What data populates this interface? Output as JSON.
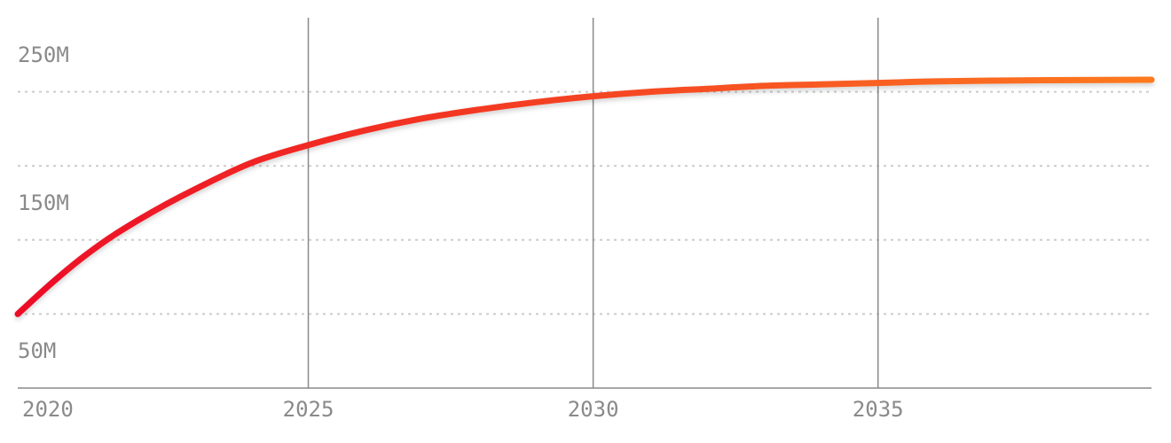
{
  "chart_data": {
    "type": "line",
    "title": "",
    "xlabel": "",
    "ylabel": "",
    "x_ticks": [
      2020,
      2025,
      2030,
      2035
    ],
    "x_tick_labels": [
      "2020",
      "2025",
      "2030",
      "2035"
    ],
    "y_ticks": [
      50,
      150,
      250
    ],
    "y_tick_labels": [
      "50M",
      "150M",
      "250M"
    ],
    "y_gridlines": [
      75,
      125,
      175,
      225
    ],
    "y_unit": "millions",
    "xlim": [
      2019.9,
      2039.8
    ],
    "ylim": [
      25,
      275
    ],
    "grid": {
      "x": "solid",
      "y": "dotted"
    },
    "legend": "none",
    "colors": {
      "line_start": "#ec0d26",
      "line_end": "#fd7a1f",
      "grid_x": "#8a8a8a",
      "grid_y": "#cccccc",
      "axis": "#8a8a8a",
      "tick_text": "#8a8a8a"
    },
    "series": [
      {
        "x": [
          2019.9,
          2020.5,
          2021,
          2021.5,
          2022,
          2022.5,
          2023,
          2024,
          2025,
          2026,
          2027,
          2028,
          2029,
          2030,
          2031,
          2032,
          2033,
          2034,
          2035,
          2036,
          2037,
          2038,
          2039,
          2039.8
        ],
        "y": [
          75,
          96,
          112,
          126,
          138,
          149,
          159,
          177,
          189,
          199,
          207,
          213,
          218,
          222,
          225,
          227,
          229,
          230,
          231,
          232,
          232.5,
          232.8,
          233,
          233.1
        ]
      }
    ]
  }
}
